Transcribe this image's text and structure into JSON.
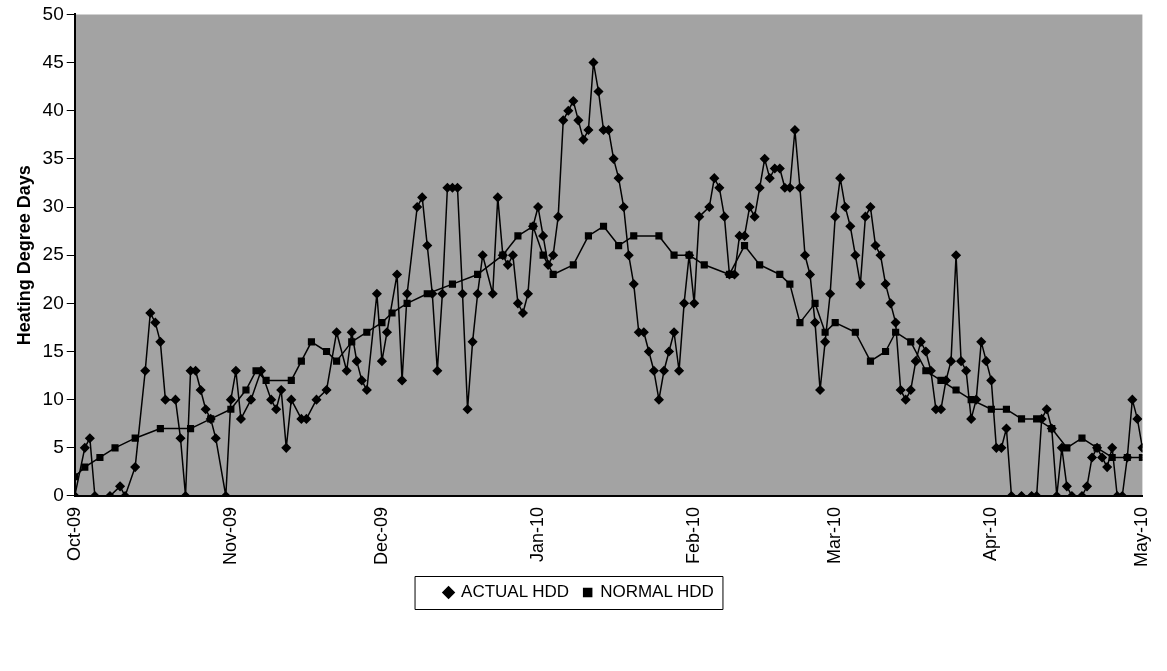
{
  "chart_data": {
    "type": "line",
    "ylabel": "Heating Degree Days",
    "xlim": [
      "2009-10-01",
      "2010-05-01"
    ],
    "xticks": [
      {
        "value": "2009-10-01",
        "label": "Oct-09"
      },
      {
        "value": "2009-11-01",
        "label": "Nov-09"
      },
      {
        "value": "2009-12-01",
        "label": "Dec-09"
      },
      {
        "value": "2010-01-01",
        "label": "Jan-10"
      },
      {
        "value": "2010-02-01",
        "label": "Feb-10"
      },
      {
        "value": "2010-03-01",
        "label": "Mar-10"
      },
      {
        "value": "2010-04-01",
        "label": "Apr-10"
      },
      {
        "value": "2010-05-01",
        "label": "May-10"
      }
    ],
    "ylim": [
      0,
      50
    ],
    "yticks": [
      0,
      5,
      10,
      15,
      20,
      25,
      30,
      35,
      40,
      45,
      50
    ],
    "grid": false,
    "legend": "bottom",
    "line_style": "solid",
    "series": [
      {
        "name": "ACTUAL HDD",
        "color": "#000000",
        "marker": "diamond",
        "x": [
          "2009-10-01",
          "2009-10-03",
          "2009-10-04",
          "2009-10-05",
          "2009-10-08",
          "2009-10-10",
          "2009-10-11",
          "2009-10-13",
          "2009-10-15",
          "2009-10-16",
          "2009-10-17",
          "2009-10-18",
          "2009-10-19",
          "2009-10-21",
          "2009-10-22",
          "2009-10-23",
          "2009-10-24",
          "2009-10-25",
          "2009-10-26",
          "2009-10-27",
          "2009-10-28",
          "2009-10-29",
          "2009-10-31",
          "2009-11-01",
          "2009-11-02",
          "2009-11-03",
          "2009-11-05",
          "2009-11-07",
          "2009-11-09",
          "2009-11-10",
          "2009-11-11",
          "2009-11-12",
          "2009-11-13",
          "2009-11-15",
          "2009-11-16",
          "2009-11-18",
          "2009-11-20",
          "2009-11-22",
          "2009-11-24",
          "2009-11-25",
          "2009-11-26",
          "2009-11-27",
          "2009-11-28",
          "2009-11-30",
          "2009-12-01",
          "2009-12-02",
          "2009-12-04",
          "2009-12-05",
          "2009-12-06",
          "2009-12-08",
          "2009-12-09",
          "2009-12-10",
          "2009-12-11",
          "2009-12-12",
          "2009-12-13",
          "2009-12-14",
          "2009-12-15",
          "2009-12-16",
          "2009-12-17",
          "2009-12-18",
          "2009-12-19",
          "2009-12-20",
          "2009-12-21",
          "2009-12-23",
          "2009-12-24",
          "2009-12-25",
          "2009-12-26",
          "2009-12-27",
          "2009-12-28",
          "2009-12-29",
          "2009-12-30",
          "2009-12-31",
          "2010-01-01",
          "2010-01-02",
          "2010-01-03",
          "2010-01-04",
          "2010-01-05",
          "2010-01-06",
          "2010-01-07",
          "2010-01-08",
          "2010-01-09",
          "2010-01-10",
          "2010-01-11",
          "2010-01-12",
          "2010-01-13",
          "2010-01-14",
          "2010-01-15",
          "2010-01-16",
          "2010-01-17",
          "2010-01-18",
          "2010-01-19",
          "2010-01-20",
          "2010-01-21",
          "2010-01-22",
          "2010-01-23",
          "2010-01-24",
          "2010-01-25",
          "2010-01-26",
          "2010-01-27",
          "2010-01-28",
          "2010-01-29",
          "2010-01-30",
          "2010-01-31",
          "2010-02-01",
          "2010-02-02",
          "2010-02-04",
          "2010-02-05",
          "2010-02-06",
          "2010-02-07",
          "2010-02-08",
          "2010-02-09",
          "2010-02-10",
          "2010-02-11",
          "2010-02-12",
          "2010-02-13",
          "2010-02-14",
          "2010-02-15",
          "2010-02-16",
          "2010-02-17",
          "2010-02-18",
          "2010-02-19",
          "2010-02-20",
          "2010-02-21",
          "2010-02-22",
          "2010-02-23",
          "2010-02-24",
          "2010-02-25",
          "2010-02-26",
          "2010-02-27",
          "2010-02-28",
          "2010-03-01",
          "2010-03-02",
          "2010-03-03",
          "2010-03-04",
          "2010-03-05",
          "2010-03-06",
          "2010-03-07",
          "2010-03-08",
          "2010-03-09",
          "2010-03-10",
          "2010-03-11",
          "2010-03-12",
          "2010-03-13",
          "2010-03-14",
          "2010-03-15",
          "2010-03-16",
          "2010-03-17",
          "2010-03-18",
          "2010-03-19",
          "2010-03-20",
          "2010-03-21",
          "2010-03-22",
          "2010-03-23",
          "2010-03-24",
          "2010-03-25",
          "2010-03-26",
          "2010-03-27",
          "2010-03-28",
          "2010-03-29",
          "2010-03-30",
          "2010-03-31",
          "2010-04-01",
          "2010-04-02",
          "2010-04-03",
          "2010-04-04",
          "2010-04-05",
          "2010-04-07",
          "2010-04-09",
          "2010-04-10",
          "2010-04-11",
          "2010-04-12",
          "2010-04-13",
          "2010-04-14",
          "2010-04-15",
          "2010-04-16",
          "2010-04-17",
          "2010-04-19",
          "2010-04-20",
          "2010-04-21",
          "2010-04-22",
          "2010-04-23",
          "2010-04-24",
          "2010-04-25",
          "2010-04-26",
          "2010-04-27",
          "2010-04-28",
          "2010-04-29",
          "2010-04-30",
          "2010-05-01"
        ],
        "values": [
          0,
          5,
          6,
          0,
          0,
          1,
          0,
          3,
          13,
          19,
          18,
          16,
          10,
          10,
          6,
          0,
          13,
          13,
          11,
          9,
          8,
          6,
          0,
          10,
          13,
          8,
          10,
          13,
          10,
          9,
          11,
          5,
          10,
          8,
          8,
          10,
          11,
          17,
          13,
          17,
          14,
          12,
          11,
          21,
          14,
          17,
          23,
          12,
          21,
          30,
          31,
          26,
          21,
          13,
          21,
          32,
          32,
          32,
          21,
          9,
          16,
          21,
          25,
          21,
          31,
          25,
          24,
          25,
          20,
          19,
          21,
          28,
          30,
          27,
          24,
          25,
          29,
          39,
          40,
          41,
          39,
          37,
          38,
          45,
          42,
          38,
          38,
          35,
          33,
          30,
          25,
          22,
          17,
          17,
          15,
          13,
          10,
          13,
          15,
          17,
          13,
          20,
          25,
          20,
          29,
          30,
          33,
          32,
          29,
          23,
          23,
          27,
          27,
          30,
          29,
          32,
          35,
          33,
          34,
          34,
          32,
          32,
          38,
          32,
          25,
          23,
          18,
          11,
          16,
          21,
          29,
          33,
          30,
          28,
          25,
          22,
          29,
          30,
          26,
          25,
          22,
          20,
          18,
          11,
          10,
          11,
          14,
          16,
          15,
          13,
          9,
          9,
          12,
          14,
          25,
          14,
          13,
          8,
          10,
          16,
          14,
          12,
          5,
          5,
          7,
          0,
          0,
          0,
          0,
          8,
          9,
          7,
          0,
          5,
          1,
          0,
          0,
          1,
          4,
          5,
          4,
          3,
          5,
          0,
          0,
          4,
          10,
          8,
          5
        ]
      },
      {
        "name": "NORMAL HDD",
        "color": "#000000",
        "marker": "square",
        "x": [
          "2009-10-01",
          "2009-10-03",
          "2009-10-06",
          "2009-10-09",
          "2009-10-13",
          "2009-10-18",
          "2009-10-24",
          "2009-10-28",
          "2009-11-01",
          "2009-11-04",
          "2009-11-06",
          "2009-11-08",
          "2009-11-13",
          "2009-11-15",
          "2009-11-17",
          "2009-11-20",
          "2009-11-22",
          "2009-11-25",
          "2009-11-28",
          "2009-12-01",
          "2009-12-03",
          "2009-12-06",
          "2009-12-10",
          "2009-12-15",
          "2009-12-20",
          "2009-12-25",
          "2009-12-28",
          "2009-12-31",
          "2010-01-02",
          "2010-01-04",
          "2010-01-08",
          "2010-01-11",
          "2010-01-14",
          "2010-01-17",
          "2010-01-20",
          "2010-01-25",
          "2010-01-28",
          "2010-01-31",
          "2010-02-03",
          "2010-02-08",
          "2010-02-11",
          "2010-02-14",
          "2010-02-18",
          "2010-02-20",
          "2010-02-22",
          "2010-02-25",
          "2010-02-27",
          "2010-03-01",
          "2010-03-05",
          "2010-03-08",
          "2010-03-11",
          "2010-03-13",
          "2010-03-16",
          "2010-03-19",
          "2010-03-22",
          "2010-03-25",
          "2010-03-28",
          "2010-04-01",
          "2010-04-04",
          "2010-04-07",
          "2010-04-10",
          "2010-04-13",
          "2010-04-16",
          "2010-04-19",
          "2010-04-22",
          "2010-04-25",
          "2010-04-28",
          "2010-05-01"
        ],
        "values": [
          2,
          3,
          4,
          5,
          6,
          7,
          7,
          8,
          9,
          11,
          13,
          12,
          12,
          14,
          16,
          15,
          14,
          16,
          17,
          18,
          19,
          20,
          21,
          22,
          23,
          25,
          27,
          28,
          25,
          23,
          24,
          27,
          28,
          26,
          27,
          27,
          25,
          25,
          24,
          23,
          26,
          24,
          23,
          22,
          18,
          20,
          17,
          18,
          17,
          14,
          15,
          17,
          16,
          13,
          12,
          11,
          10,
          9,
          9,
          8,
          8,
          7,
          5,
          6,
          5,
          4,
          4,
          4
        ]
      }
    ]
  }
}
